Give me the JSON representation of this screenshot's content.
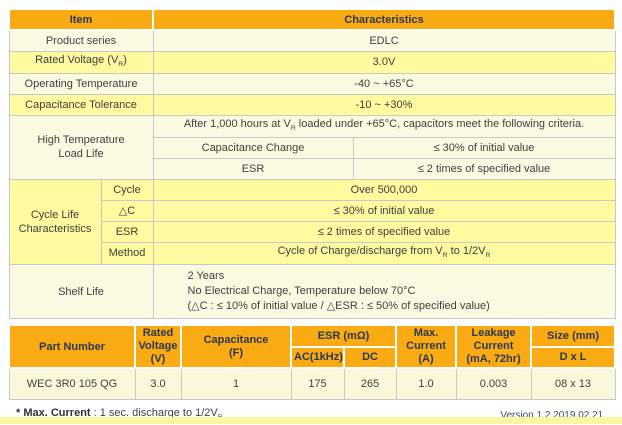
{
  "colors": {
    "header_bg": "#FAAA12",
    "header_text": "#2A3850",
    "body_text": "#404040",
    "row_cream": "#FCF9E2",
    "row_yellow": "#FEFA9F",
    "data_row_bg": "#FBF7DA",
    "border": "#C9C9C9",
    "bottom_bar": "#F9F7A0",
    "version_text": "#3E4A66"
  },
  "spec_table": {
    "header": {
      "item": "Item",
      "characteristics": "Characteristics"
    },
    "rows": [
      {
        "label": "Product series",
        "value": "EDLC"
      },
      {
        "label_html": "Rated Voltage (V<sub>R</sub>)",
        "value": "3.0V"
      },
      {
        "label": "Operating Temperature",
        "value": "-40 ~ +65°C"
      },
      {
        "label": "Capacitance Tolerance",
        "value": "-10 ~ +30%"
      }
    ],
    "high_temp_load_life": {
      "label_html": "High Temperature<br>Load Life",
      "criteria_html": "After 1,000 hours at V<sub>R</sub> loaded under +65°C, capacitors meet the following criteria.",
      "sub_rows": [
        {
          "name": "Capacitance Change",
          "value": "≤ 30% of initial value"
        },
        {
          "name": "ESR",
          "value": "≤ 2 times of specified value"
        }
      ]
    },
    "cycle_life": {
      "label_html": "Cycle Life<br>Characteristics",
      "sub_rows": [
        {
          "name": "Cycle",
          "value": "Over 500,000"
        },
        {
          "name": "△C",
          "value": "≤ 30% of initial value"
        },
        {
          "name": "ESR",
          "value": "≤ 2 times of specified value"
        },
        {
          "name": "Method",
          "value_html": "Cycle of Charge/discharge from V<sub>R</sub> to 1/2V<sub>R</sub>"
        }
      ]
    },
    "shelf_life": {
      "label": "Shelf Life",
      "lines": [
        "2 Years",
        "No Electrical Charge, Temperature below 70°C",
        "(△C : ≤ 10% of initial value / △ESR : ≤ 50% of specified value)"
      ]
    }
  },
  "part_table": {
    "headers": {
      "part_number": "Part Number",
      "rated_voltage": "Rated\nVoltage\n(V)",
      "capacitance": "Capacitance\n(F)",
      "esr": "ESR (mΩ)",
      "esr_ac": "AC(1kHz)",
      "esr_dc": "DC",
      "max_current": "Max.\nCurrent\n(A)",
      "leakage_current": "Leakage\nCurrent\n(mA, 72hr)",
      "size": "Size (mm)",
      "size_dxl": "D x L"
    },
    "row": {
      "part_number": "WEC 3R0 105 QG",
      "rated_voltage": "3.0",
      "capacitance": "1",
      "esr_ac": "175",
      "esr_dc": "265",
      "max_current": "1.0",
      "leakage_current": "0.003",
      "size": "08 x 13"
    }
  },
  "footer": {
    "note_label": "* Max. Current",
    "note_text_html": " : 1 sec. discharge to 1/2V<sub>R</sub>",
    "version": "Version 1.2 2019.02.21."
  }
}
